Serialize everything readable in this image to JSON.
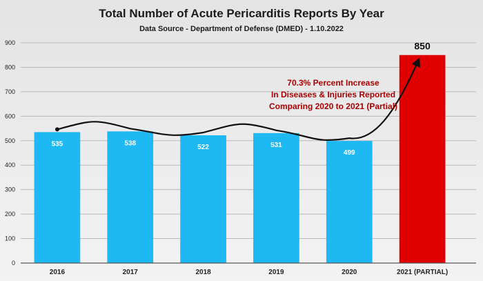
{
  "chart_data": {
    "type": "bar",
    "title": "Total Number of Acute Pericarditis Reports By Year",
    "subtitle": "Data Source - Department of Defense (DMED) - 1.10.2022",
    "categories": [
      "2016",
      "2017",
      "2018",
      "2019",
      "2020",
      "2021 (PARTIAL)"
    ],
    "values": [
      535,
      538,
      522,
      531,
      499,
      850
    ],
    "data_labels": [
      "535",
      "538",
      "522",
      "531",
      "499",
      "850"
    ],
    "ylim": [
      0,
      900
    ],
    "yticks": [
      0,
      100,
      200,
      300,
      400,
      500,
      600,
      700,
      800,
      900
    ],
    "grid": true,
    "legend": "none",
    "colors": {
      "bar": "#1eb8f2",
      "highlight_bar": "#e00000",
      "annotation": "#a80000",
      "trend_line": "#111111"
    },
    "annotation": {
      "lines": [
        "70.3% Percent Increase",
        "In Diseases & Injuries Reported",
        "Comparing 2020 to 2021 (Partial)"
      ]
    }
  }
}
